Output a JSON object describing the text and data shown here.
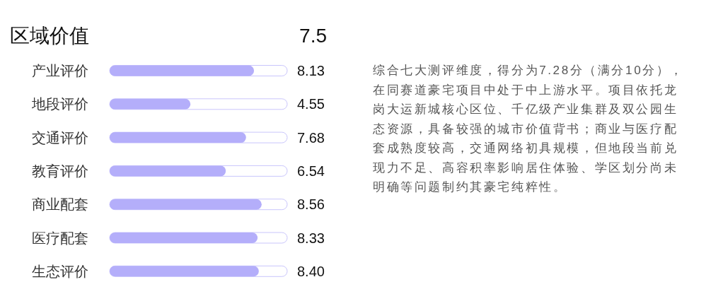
{
  "chart_data": [
    {
      "type": "bar",
      "orientation": "horizontal",
      "title": "区域价值",
      "annotations": [
        "7.5"
      ],
      "categories": [
        "产业评价",
        "地段评价",
        "交通评价",
        "教育评价",
        "商业配套",
        "医疗配套",
        "生态评价"
      ],
      "values": [
        8.13,
        4.55,
        7.68,
        6.54,
        8.56,
        8.33,
        8.4
      ],
      "value_labels": [
        "8.13",
        "4.55",
        "7.68",
        "6.54",
        "8.56",
        "8.33",
        "8.40"
      ],
      "color": "#b4aefa",
      "xlim": [
        0,
        10
      ],
      "tick_labels": "y"
    },
    {
      "type": "other",
      "annotations": [
        "综合七大测评维度，得分为7.28分（满分10分），在同赛道豪宅项目中处于中上游水平。项目依托龙岗大运新城核心区位、千亿级产业集群及双公园生态资源，具备较强的城市价值背书；商业与医疗配套成熟度较高，交通网络初具规模，但地段当前兑现力不足、高容积率影响居住体验、学区划分尚未明确等问题制约其豪宅纯粹性。"
      ]
    }
  ]
}
